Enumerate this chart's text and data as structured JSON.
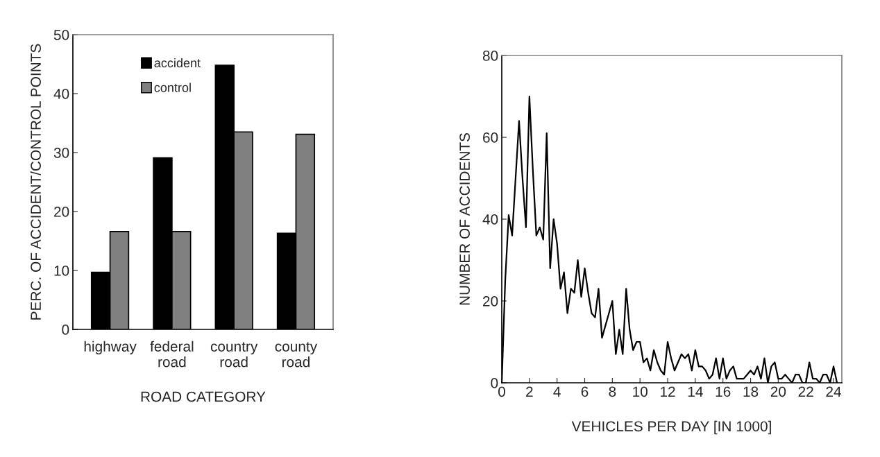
{
  "chart_data": [
    {
      "type": "bar",
      "categories": [
        "highway",
        "federal\nroad",
        "country\nroad",
        "county\nroad"
      ],
      "xlabel": "ROAD CATEGORY",
      "ylabel": "PERC. OF ACCIDENT/CONTROL POINTS",
      "ylim": [
        0,
        50
      ],
      "yticks": [
        0,
        10,
        20,
        30,
        40,
        50
      ],
      "legend": "top left",
      "grid": false,
      "series": [
        {
          "name": "accident",
          "color": "#000000",
          "values": [
            9.7,
            29.1,
            44.8,
            16.3
          ]
        },
        {
          "name": "control",
          "color": "#808080",
          "values": [
            16.6,
            16.6,
            33.5,
            33.1
          ]
        }
      ]
    },
    {
      "type": "line",
      "xlabel": "VEHICLES PER DAY [IN 1000]",
      "ylabel": "NUMBER OF ACCIDENTS",
      "xlim": [
        0,
        24.6
      ],
      "xticks": [
        0,
        2,
        4,
        6,
        8,
        10,
        12,
        14,
        16,
        18,
        20,
        22,
        24
      ],
      "ylim": [
        0,
        80
      ],
      "yticks": [
        0,
        20,
        40,
        60,
        80
      ],
      "grid": false,
      "legend": false,
      "marker": "none",
      "line_style": "solid",
      "x": [
        0,
        0.25,
        0.5,
        0.75,
        1.0,
        1.25,
        1.5,
        1.75,
        2.0,
        2.25,
        2.5,
        2.75,
        3.0,
        3.25,
        3.5,
        3.75,
        4.0,
        4.25,
        4.5,
        4.75,
        5.0,
        5.25,
        5.5,
        5.75,
        6.0,
        6.25,
        6.5,
        6.75,
        7.0,
        7.25,
        7.5,
        7.75,
        8.0,
        8.25,
        8.5,
        8.75,
        9.0,
        9.25,
        9.5,
        9.75,
        10.0,
        10.25,
        10.5,
        10.75,
        11.0,
        11.25,
        11.5,
        11.75,
        12.0,
        12.25,
        12.5,
        12.75,
        13.0,
        13.25,
        13.5,
        13.75,
        14.0,
        14.25,
        14.5,
        14.75,
        15.0,
        15.25,
        15.5,
        15.75,
        16.0,
        16.25,
        16.5,
        16.75,
        17.0,
        17.25,
        17.5,
        17.75,
        18.0,
        18.25,
        18.5,
        18.75,
        19.0,
        19.25,
        19.5,
        19.75,
        20.0,
        20.25,
        20.5,
        20.75,
        21.0,
        21.25,
        21.5,
        21.75,
        22.0,
        22.25,
        22.5,
        22.75,
        23.0,
        23.25,
        23.5,
        23.75,
        24.0,
        24.25
      ],
      "series": [
        {
          "color": "#000000",
          "values": [
            0,
            25,
            41,
            36,
            50,
            64,
            50,
            38,
            70,
            52,
            36,
            38,
            35,
            61,
            28,
            40,
            34,
            23,
            27,
            17,
            23,
            22,
            30,
            21,
            28,
            22,
            17,
            16,
            23,
            11,
            14,
            17,
            20,
            7,
            13,
            7,
            23,
            13,
            8,
            10,
            10,
            5,
            6,
            3,
            8,
            5,
            3,
            2,
            10,
            6,
            3,
            5,
            7,
            6,
            7,
            3,
            8,
            4,
            4,
            3,
            1,
            2,
            6,
            1,
            6,
            1,
            3,
            4,
            1,
            1,
            1,
            2,
            3,
            2,
            4,
            1,
            6,
            0,
            4,
            5,
            1,
            1,
            2,
            1,
            0,
            2,
            2,
            0,
            0,
            5,
            1,
            1,
            0,
            2,
            2,
            0,
            4,
            0
          ]
        }
      ]
    }
  ]
}
